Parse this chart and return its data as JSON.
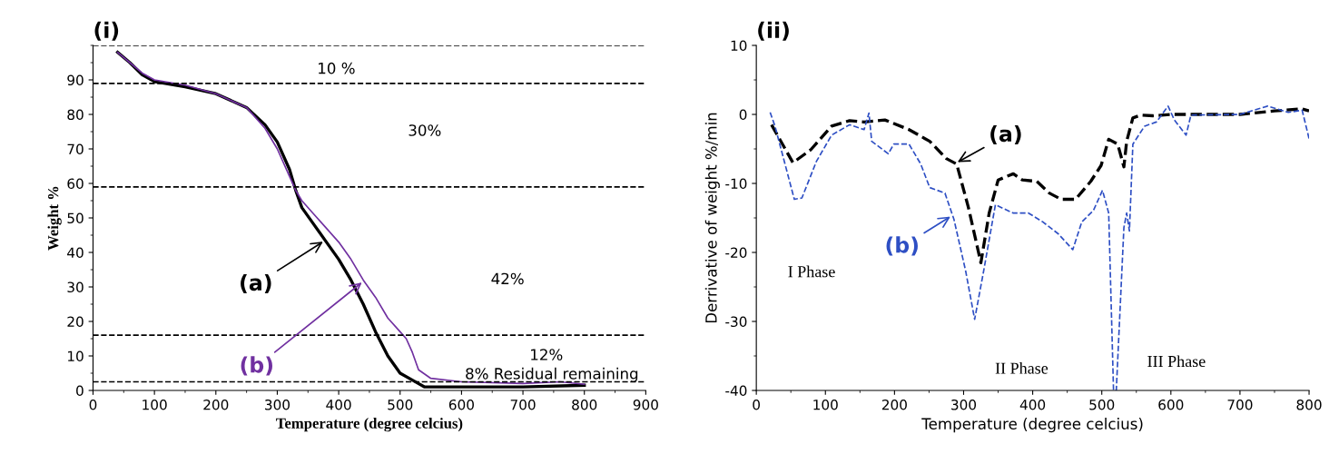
{
  "chart_data": [
    {
      "type": "line",
      "title": "(i)",
      "xlabel": "Temperature (degree celcius)",
      "ylabel": "Weight %",
      "xlim": [
        0,
        900
      ],
      "xticks": [
        0,
        100,
        200,
        300,
        400,
        500,
        600,
        700,
        800,
        900
      ],
      "ylim": [
        0,
        100
      ],
      "yticks": [
        0,
        10,
        20,
        30,
        40,
        50,
        60,
        70,
        80,
        90
      ],
      "grid": false,
      "marker": "none",
      "line_style": "solid",
      "series": [
        {
          "name": "(a)",
          "color": "#000000",
          "x": [
            40,
            60,
            80,
            100,
            150,
            200,
            250,
            280,
            300,
            320,
            330,
            340,
            360,
            380,
            400,
            420,
            440,
            460,
            480,
            500,
            520,
            540,
            600,
            700,
            800
          ],
          "values": [
            98,
            95,
            91.5,
            89.5,
            88,
            86,
            82,
            77,
            72,
            64,
            58,
            53,
            48,
            43,
            38,
            32,
            25,
            17,
            10,
            5,
            3,
            1,
            1,
            1,
            1.5
          ]
        },
        {
          "name": "(b)",
          "color": "#7030a0",
          "x": [
            40,
            60,
            80,
            100,
            150,
            200,
            250,
            280,
            300,
            320,
            330,
            340,
            360,
            380,
            400,
            420,
            440,
            460,
            480,
            500,
            510,
            520,
            530,
            550,
            600,
            700,
            760,
            800
          ],
          "values": [
            98,
            95,
            92,
            90,
            88.5,
            86,
            82,
            76,
            70,
            62,
            58,
            55,
            51,
            47,
            43,
            38,
            32,
            27,
            21,
            17,
            15,
            11,
            6,
            3.5,
            2.5,
            2,
            2.5,
            1.8
          ]
        }
      ],
      "ref_lines": [
        {
          "axis": "y",
          "value": 100,
          "color": "#000000",
          "line_style": "dashed"
        },
        {
          "axis": "y",
          "value": 89,
          "color": "#000000",
          "line_style": "dashed"
        },
        {
          "axis": "y",
          "value": 59,
          "color": "#000000",
          "line_style": "dashed"
        },
        {
          "axis": "y",
          "value": 16,
          "color": "#000000",
          "line_style": "dashed"
        },
        {
          "axis": "y",
          "value": 2.5,
          "color": "#000000",
          "line_style": "dashed"
        }
      ],
      "annotations": [
        "10 %",
        "30%",
        "42%",
        "12%",
        "8% Residual remaining"
      ]
    },
    {
      "type": "line",
      "title": "(ii)",
      "xlabel": "Temperature (degree celcius)",
      "ylabel": "Derrivative of weight %/min",
      "xlim": [
        0,
        800
      ],
      "xticks": [
        0,
        100,
        200,
        300,
        400,
        500,
        600,
        700,
        800
      ],
      "ylim": [
        -40,
        10
      ],
      "yticks": [
        -40,
        -30,
        -20,
        -10,
        0,
        10
      ],
      "grid": false,
      "marker": "none",
      "line_style": "dashed",
      "series": [
        {
          "name": "(a)",
          "color": "#000000",
          "x": [
            22,
            53,
            79,
            109,
            135,
            156,
            186,
            221,
            251,
            275,
            290,
            307,
            325,
            337,
            350,
            372,
            385,
            406,
            424,
            441,
            462,
            484,
            499,
            510,
            523,
            532,
            536,
            545,
            557,
            574,
            600,
            650,
            700,
            750,
            790,
            800
          ],
          "values": [
            -1.5,
            -7.0,
            -5.1,
            -1.7,
            -0.9,
            -1.1,
            -0.8,
            -2.2,
            -3.9,
            -6.4,
            -7.2,
            -13.5,
            -21.5,
            -14.3,
            -9.5,
            -8.6,
            -9.5,
            -9.7,
            -11.4,
            -12.3,
            -12.3,
            -9.7,
            -7.4,
            -3.6,
            -4.3,
            -7.6,
            -3.9,
            -0.5,
            -0.1,
            -0.2,
            0,
            0,
            0,
            0.5,
            0.8,
            0.5
          ]
        },
        {
          "name": "(b)",
          "color": "#2e4fc4",
          "x": [
            20,
            27,
            55,
            66,
            87,
            109,
            135,
            156,
            163,
            167,
            191,
            199,
            221,
            238,
            251,
            273,
            286,
            303,
            316,
            329,
            346,
            372,
            394,
            415,
            437,
            458,
            471,
            488,
            501,
            510,
            517,
            521,
            532,
            536,
            540,
            545,
            562,
            579,
            596,
            605,
            622,
            629,
            700,
            740,
            770,
            790,
            800
          ],
          "values": [
            0.3,
            -1.7,
            -12.3,
            -12.1,
            -6.8,
            -3.0,
            -1.5,
            -2.2,
            0.2,
            -3.9,
            -5.7,
            -4.3,
            -4.3,
            -7.2,
            -10.6,
            -11.4,
            -15.2,
            -22.7,
            -29.7,
            -22.7,
            -13.1,
            -14.3,
            -14.3,
            -15.6,
            -17.3,
            -19.6,
            -15.6,
            -13.9,
            -11.0,
            -14.3,
            -40,
            -40,
            -16.4,
            -14.3,
            -16.9,
            -4.3,
            -1.7,
            -1.1,
            1.2,
            -0.8,
            -3.0,
            -0.1,
            0,
            1.2,
            0.3,
            0.6,
            -3.5
          ]
        }
      ],
      "annotations": [
        "I Phase",
        "II Phase",
        "III Phase"
      ]
    }
  ]
}
